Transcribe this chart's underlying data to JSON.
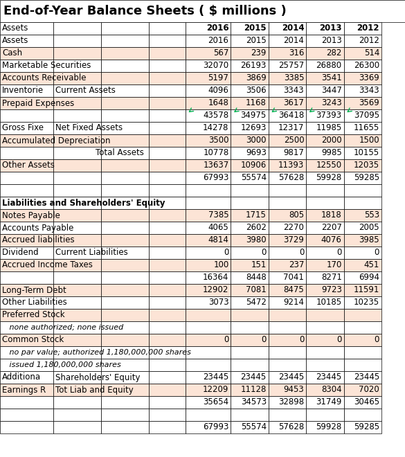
{
  "title": "End-of-Year Balance Sheets ( $ millions )",
  "rows": [
    {
      "col0": "Assets",
      "col1": "",
      "col2": "",
      "col3": "",
      "v2016": "2016",
      "v2015": "2015",
      "v2014": "2014",
      "v2013": "2013",
      "v2012": "2012",
      "bg": "white",
      "bold0": false,
      "bold_num": true,
      "italic": false,
      "center2": false,
      "subtotal": false,
      "section": false,
      "indent": false
    },
    {
      "col0": "Cash",
      "col1": "",
      "col2": "",
      "col3": "",
      "v2016": "567",
      "v2015": "239",
      "v2014": "316",
      "v2013": "282",
      "v2012": "514",
      "bg": "orange",
      "bold0": false,
      "bold_num": false,
      "italic": false,
      "center2": false,
      "subtotal": false,
      "section": false,
      "indent": false
    },
    {
      "col0": "Marketable Securities",
      "col1": "",
      "col2": "",
      "col3": "",
      "v2016": "32070",
      "v2015": "26193",
      "v2014": "25757",
      "v2013": "26880",
      "v2012": "26300",
      "bg": "white",
      "bold0": false,
      "bold_num": false,
      "italic": false,
      "center2": false,
      "subtotal": false,
      "section": false,
      "indent": false
    },
    {
      "col0": "Accounts Receivable",
      "col1": "",
      "col2": "",
      "col3": "",
      "v2016": "5197",
      "v2015": "3869",
      "v2014": "3385",
      "v2013": "3541",
      "v2012": "3369",
      "bg": "orange",
      "bold0": false,
      "bold_num": false,
      "italic": false,
      "center2": false,
      "subtotal": false,
      "section": false,
      "indent": false
    },
    {
      "col0": "Inventorie",
      "col1": "Current Assets",
      "col2": "",
      "col3": "",
      "v2016": "4096",
      "v2015": "3506",
      "v2014": "3343",
      "v2013": "3447",
      "v2012": "3343",
      "bg": "white",
      "bold0": false,
      "bold_num": false,
      "italic": false,
      "center2": false,
      "subtotal": false,
      "section": false,
      "indent": false
    },
    {
      "col0": "Prepaid Expenses",
      "col1": "",
      "col2": "",
      "col3": "",
      "v2016": "1648",
      "v2015": "1168",
      "v2014": "3617",
      "v2013": "3243",
      "v2012": "3569",
      "bg": "orange",
      "bold0": false,
      "bold_num": false,
      "italic": false,
      "center2": false,
      "subtotal": false,
      "section": false,
      "indent": false
    },
    {
      "col0": "",
      "col1": "",
      "col2": "",
      "col3": "",
      "v2016": "43578",
      "v2015": "34975",
      "v2014": "36418",
      "v2013": "37393",
      "v2012": "37095",
      "bg": "white",
      "bold0": false,
      "bold_num": false,
      "italic": false,
      "center2": false,
      "subtotal": true,
      "section": false,
      "indent": false
    },
    {
      "col0": "Gross Fixe",
      "col1": "Net Fixed Assets",
      "col2": "",
      "col3": "",
      "v2016": "14278",
      "v2015": "12693",
      "v2014": "12317",
      "v2013": "11985",
      "v2012": "11655",
      "bg": "white",
      "bold0": false,
      "bold_num": false,
      "italic": false,
      "center2": false,
      "subtotal": false,
      "section": false,
      "indent": false
    },
    {
      "col0": "Accumulated Depreciation",
      "col1": "",
      "col2": "",
      "col3": "",
      "v2016": "3500",
      "v2015": "3000",
      "v2014": "2500",
      "v2013": "2000",
      "v2012": "1500",
      "bg": "orange",
      "bold0": false,
      "bold_num": false,
      "italic": false,
      "center2": false,
      "subtotal": false,
      "section": false,
      "indent": false
    },
    {
      "col0": "",
      "col1": "",
      "col2": "Total Assets",
      "col3": "",
      "v2016": "10778",
      "v2015": "9693",
      "v2014": "9817",
      "v2013": "9985",
      "v2012": "10155",
      "bg": "white",
      "bold0": false,
      "bold_num": false,
      "italic": false,
      "center2": true,
      "subtotal": false,
      "section": false,
      "indent": false
    },
    {
      "col0": "Other Assets",
      "col1": "",
      "col2": "",
      "col3": "",
      "v2016": "13637",
      "v2015": "10906",
      "v2014": "11393",
      "v2013": "12550",
      "v2012": "12035",
      "bg": "orange",
      "bold0": false,
      "bold_num": false,
      "italic": false,
      "center2": false,
      "subtotal": false,
      "section": false,
      "indent": false
    },
    {
      "col0": "",
      "col1": "",
      "col2": "",
      "col3": "",
      "v2016": "67993",
      "v2015": "55574",
      "v2014": "57628",
      "v2013": "59928",
      "v2012": "59285",
      "bg": "white",
      "bold0": false,
      "bold_num": false,
      "italic": false,
      "center2": false,
      "subtotal": false,
      "section": false,
      "indent": false
    },
    {
      "col0": "",
      "col1": "",
      "col2": "",
      "col3": "",
      "v2016": "",
      "v2015": "",
      "v2014": "",
      "v2013": "",
      "v2012": "",
      "bg": "white",
      "bold0": false,
      "bold_num": false,
      "italic": false,
      "center2": false,
      "subtotal": false,
      "section": false,
      "indent": false
    },
    {
      "col0": "Liabilities and Shareholders' Equity",
      "col1": "",
      "col2": "",
      "col3": "",
      "v2016": "",
      "v2015": "",
      "v2014": "",
      "v2013": "",
      "v2012": "",
      "bg": "white",
      "bold0": true,
      "bold_num": false,
      "italic": false,
      "center2": false,
      "subtotal": false,
      "section": true,
      "indent": false
    },
    {
      "col0": "Notes Payable",
      "col1": "",
      "col2": "",
      "col3": "",
      "v2016": "7385",
      "v2015": "1715",
      "v2014": "805",
      "v2013": "1818",
      "v2012": "553",
      "bg": "orange",
      "bold0": false,
      "bold_num": false,
      "italic": false,
      "center2": false,
      "subtotal": false,
      "section": false,
      "indent": false
    },
    {
      "col0": "Accounts Payable",
      "col1": "",
      "col2": "",
      "col3": "",
      "v2016": "4065",
      "v2015": "2602",
      "v2014": "2270",
      "v2013": "2207",
      "v2012": "2005",
      "bg": "white",
      "bold0": false,
      "bold_num": false,
      "italic": false,
      "center2": false,
      "subtotal": false,
      "section": false,
      "indent": false
    },
    {
      "col0": "Accrued liabilities",
      "col1": "",
      "col2": "",
      "col3": "",
      "v2016": "4814",
      "v2015": "3980",
      "v2014": "3729",
      "v2013": "4076",
      "v2012": "3985",
      "bg": "orange",
      "bold0": false,
      "bold_num": false,
      "italic": false,
      "center2": false,
      "subtotal": false,
      "section": false,
      "indent": false
    },
    {
      "col0": "Dividend ",
      "col1": "Current Liabilities",
      "col2": "",
      "col3": "",
      "v2016": "0",
      "v2015": "0",
      "v2014": "0",
      "v2013": "0",
      "v2012": "0",
      "bg": "white",
      "bold0": false,
      "bold_num": false,
      "italic": false,
      "center2": false,
      "subtotal": false,
      "section": false,
      "indent": false
    },
    {
      "col0": "Accrued Income Taxes",
      "col1": "",
      "col2": "",
      "col3": "",
      "v2016": "100",
      "v2015": "151",
      "v2014": "237",
      "v2013": "170",
      "v2012": "451",
      "bg": "orange",
      "bold0": false,
      "bold_num": false,
      "italic": false,
      "center2": false,
      "subtotal": false,
      "section": false,
      "indent": false
    },
    {
      "col0": "",
      "col1": "",
      "col2": "",
      "col3": "",
      "v2016": "16364",
      "v2015": "8448",
      "v2014": "7041",
      "v2013": "8271",
      "v2012": "6994",
      "bg": "white",
      "bold0": false,
      "bold_num": false,
      "italic": false,
      "center2": false,
      "subtotal": false,
      "section": false,
      "indent": false
    },
    {
      "col0": "Long-Term Debt",
      "col1": "",
      "col2": "",
      "col3": "",
      "v2016": "12902",
      "v2015": "7081",
      "v2014": "8475",
      "v2013": "9723",
      "v2012": "11591",
      "bg": "orange",
      "bold0": false,
      "bold_num": false,
      "italic": false,
      "center2": false,
      "subtotal": false,
      "section": false,
      "indent": false
    },
    {
      "col0": "Other Liabilities",
      "col1": "",
      "col2": "",
      "col3": "",
      "v2016": "3073",
      "v2015": "5472",
      "v2014": "9214",
      "v2013": "10185",
      "v2012": "10235",
      "bg": "white",
      "bold0": false,
      "bold_num": false,
      "italic": false,
      "center2": false,
      "subtotal": false,
      "section": false,
      "indent": false
    },
    {
      "col0": "Preferred Stock",
      "col1": "",
      "col2": "",
      "col3": "",
      "v2016": "",
      "v2015": "",
      "v2014": "",
      "v2013": "",
      "v2012": "",
      "bg": "orange",
      "bold0": false,
      "bold_num": false,
      "italic": false,
      "center2": false,
      "subtotal": false,
      "section": false,
      "indent": false
    },
    {
      "col0": "   none authorized; none issued",
      "col1": "",
      "col2": "",
      "col3": "",
      "v2016": "",
      "v2015": "",
      "v2014": "",
      "v2013": "",
      "v2012": "",
      "bg": "white",
      "bold0": false,
      "bold_num": false,
      "italic": true,
      "center2": false,
      "subtotal": false,
      "section": false,
      "indent": true
    },
    {
      "col0": "Common Stock",
      "col1": "",
      "col2": "",
      "col3": "",
      "v2016": "0",
      "v2015": "0",
      "v2014": "0",
      "v2013": "0",
      "v2012": "0",
      "bg": "orange",
      "bold0": false,
      "bold_num": false,
      "italic": false,
      "center2": false,
      "subtotal": false,
      "section": false,
      "indent": false
    },
    {
      "col0": "   no par value; authorized 1,180,000,000 shares",
      "col1": "",
      "col2": "",
      "col3": "",
      "v2016": "",
      "v2015": "",
      "v2014": "",
      "v2013": "",
      "v2012": "",
      "bg": "white",
      "bold0": false,
      "bold_num": false,
      "italic": true,
      "center2": false,
      "subtotal": false,
      "section": false,
      "indent": true
    },
    {
      "col0": "   issued 1,180,000,000 shares",
      "col1": "",
      "col2": "",
      "col3": "",
      "v2016": "",
      "v2015": "",
      "v2014": "",
      "v2013": "",
      "v2012": "",
      "bg": "white",
      "bold0": false,
      "bold_num": false,
      "italic": true,
      "center2": false,
      "subtotal": false,
      "section": false,
      "indent": true
    },
    {
      "col0": "Additiona",
      "col1": "Shareholders' Equity",
      "col2": "",
      "col3": "",
      "v2016": "23445",
      "v2015": "23445",
      "v2014": "23445",
      "v2013": "23445",
      "v2012": "23445",
      "bg": "white",
      "bold0": false,
      "bold_num": false,
      "italic": false,
      "center2": false,
      "subtotal": false,
      "section": false,
      "indent": false
    },
    {
      "col0": "Earnings R",
      "col1": "Tot Liab and Equity",
      "col2": "",
      "col3": "",
      "v2016": "12209",
      "v2015": "11128",
      "v2014": "9453",
      "v2013": "8304",
      "v2012": "7020",
      "bg": "orange",
      "bold0": false,
      "bold_num": false,
      "italic": false,
      "center2": false,
      "subtotal": false,
      "section": false,
      "indent": false
    },
    {
      "col0": "",
      "col1": "",
      "col2": "",
      "col3": "",
      "v2016": "35654",
      "v2015": "34573",
      "v2014": "32898",
      "v2013": "31749",
      "v2012": "30465",
      "bg": "white",
      "bold0": false,
      "bold_num": false,
      "italic": false,
      "center2": false,
      "subtotal": false,
      "section": false,
      "indent": false
    },
    {
      "col0": "",
      "col1": "",
      "col2": "",
      "col3": "",
      "v2016": "",
      "v2015": "",
      "v2014": "",
      "v2013": "",
      "v2012": "",
      "bg": "white",
      "bold0": false,
      "bold_num": false,
      "italic": false,
      "center2": false,
      "subtotal": false,
      "section": false,
      "indent": false
    },
    {
      "col0": "",
      "col1": "",
      "col2": "",
      "col3": "",
      "v2016": "67993",
      "v2015": "55574",
      "v2014": "57628",
      "v2013": "59928",
      "v2012": "59285",
      "bg": "white",
      "bold0": false,
      "bold_num": false,
      "italic": false,
      "center2": false,
      "subtotal": false,
      "section": false,
      "indent": false
    }
  ],
  "orange_bg": "#fce4d6",
  "white_bg": "#ffffff",
  "green_color": "#00b050",
  "border_lw": 0.5,
  "title_fontsize": 13,
  "data_fontsize": 8.5,
  "num_fontsize": 8.5
}
